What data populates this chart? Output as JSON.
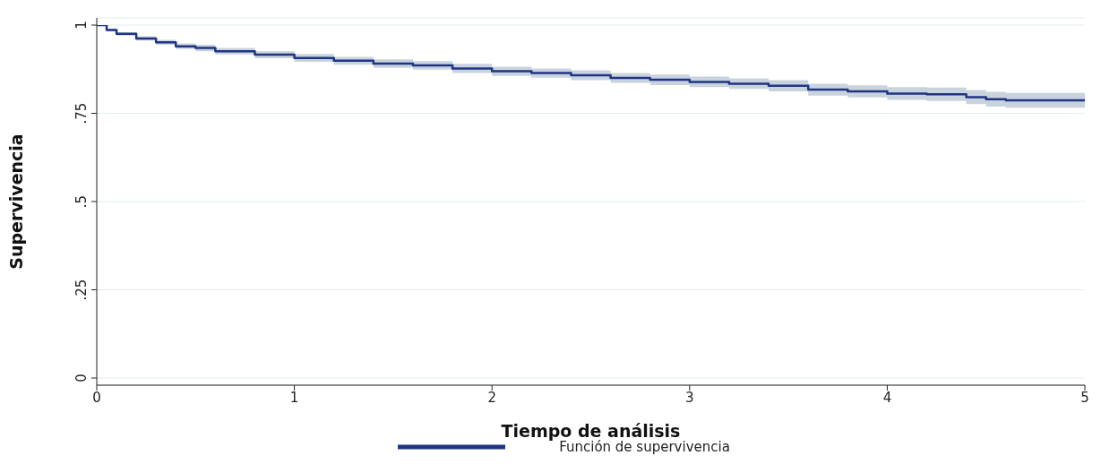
{
  "chart_data": {
    "type": "step",
    "xlabel": "Tiempo de análisis",
    "ylabel": "Supervivencia",
    "x": [
      0,
      0.05,
      0.1,
      0.2,
      0.3,
      0.4,
      0.5,
      0.6,
      0.8,
      1.0,
      1.2,
      1.4,
      1.6,
      1.8,
      2.0,
      2.2,
      2.4,
      2.6,
      2.8,
      3.0,
      3.2,
      3.4,
      3.6,
      3.8,
      4.0,
      4.2,
      4.4,
      4.5,
      4.6,
      5.0
    ],
    "series": [
      {
        "name": "Función de supervivencia",
        "color": "#1f3583",
        "values": [
          1.0,
          0.986,
          0.975,
          0.962,
          0.951,
          0.94,
          0.935,
          0.926,
          0.916,
          0.907,
          0.899,
          0.891,
          0.886,
          0.877,
          0.869,
          0.864,
          0.858,
          0.85,
          0.845,
          0.839,
          0.834,
          0.828,
          0.817,
          0.812,
          0.806,
          0.804,
          0.796,
          0.79,
          0.787,
          0.787
        ],
        "lower": [
          1.0,
          0.982,
          0.97,
          0.956,
          0.944,
          0.932,
          0.926,
          0.917,
          0.906,
          0.896,
          0.888,
          0.879,
          0.874,
          0.864,
          0.856,
          0.851,
          0.844,
          0.836,
          0.83,
          0.824,
          0.819,
          0.812,
          0.8,
          0.795,
          0.788,
          0.785,
          0.776,
          0.769,
          0.766,
          0.766
        ],
        "upper": [
          1.0,
          0.99,
          0.98,
          0.968,
          0.958,
          0.948,
          0.944,
          0.935,
          0.926,
          0.918,
          0.91,
          0.903,
          0.898,
          0.89,
          0.882,
          0.877,
          0.872,
          0.864,
          0.86,
          0.854,
          0.849,
          0.844,
          0.834,
          0.829,
          0.824,
          0.823,
          0.816,
          0.811,
          0.808,
          0.808
        ]
      }
    ],
    "xlim": [
      0,
      5
    ],
    "xticks": [
      0,
      1,
      2,
      3,
      4,
      5
    ],
    "ylim": [
      0,
      1
    ],
    "yticks": [
      {
        "value": 0,
        "label": "0"
      },
      {
        "value": 0.25,
        "label": ".25"
      },
      {
        "value": 0.5,
        "label": ".5"
      },
      {
        "value": 0.75,
        "label": ".75"
      },
      {
        "value": 1,
        "label": "1"
      }
    ],
    "grid": "y",
    "legend": "bottom",
    "line_style": "solid",
    "marker": "none"
  }
}
